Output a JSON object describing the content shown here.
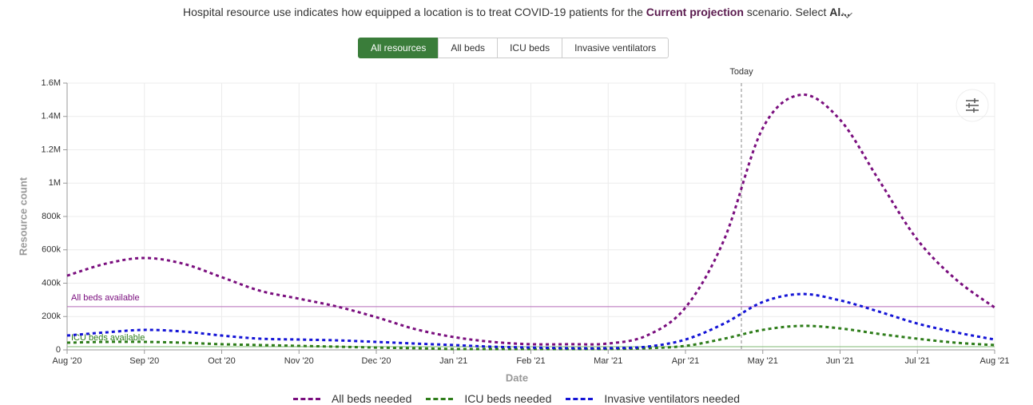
{
  "description": {
    "before": "Hospital resource use indicates how equipped a location is to treat COVID-19 patients for the",
    "highlight": "Current projection",
    "after": "scenario. Select",
    "truncated": "Al..."
  },
  "tabs": [
    "All resources",
    "All beds",
    "ICU beds",
    "Invasive ventilators"
  ],
  "chart_data": {
    "type": "line",
    "xlabel": "Date",
    "ylabel": "Resource count",
    "categories": [
      "Aug '20",
      null,
      "Sep '20",
      null,
      "Oct '20",
      null,
      "Nov '20",
      null,
      "Dec '20",
      null,
      "Jan '21",
      null,
      "Feb '21",
      null,
      "Mar '21",
      null,
      "Apr '21",
      null,
      "May '21",
      null,
      "Jun '21",
      null,
      "Jul '21",
      null,
      "Aug '21"
    ],
    "series": [
      {
        "name": "All beds needed",
        "color": "#7a0e7e",
        "values": [
          445000,
          517000,
          551000,
          517000,
          436000,
          354000,
          307000,
          259000,
          196000,
          125000,
          77000,
          48000,
          34000,
          34000,
          38000,
          86000,
          254000,
          661000,
          1330000,
          1530000,
          1380000,
          1020000,
          661000,
          422000,
          254000
        ]
      },
      {
        "name": "ICU beds needed",
        "color": "#2e7d1a",
        "values": [
          43000,
          48000,
          48000,
          43000,
          34000,
          29000,
          24000,
          19000,
          14000,
          10000,
          5000,
          5000,
          5000,
          5000,
          5000,
          10000,
          24000,
          67000,
          120000,
          144000,
          129000,
          96000,
          67000,
          43000,
          29000
        ]
      },
      {
        "name": "Invasive ventilators needed",
        "color": "#1414d6",
        "values": [
          86000,
          105000,
          120000,
          110000,
          86000,
          67000,
          62000,
          57000,
          48000,
          38000,
          29000,
          19000,
          14000,
          10000,
          10000,
          19000,
          62000,
          158000,
          287000,
          335000,
          297000,
          230000,
          158000,
          105000,
          62000
        ]
      }
    ],
    "reference_lines": [
      {
        "label": "All beds available",
        "value": 259000,
        "color": "#b46bb8"
      },
      {
        "label": "ICU beds available",
        "value": 19000,
        "color": "#7fb873"
      }
    ],
    "today_label": "Today",
    "ylim": [
      0,
      1600000
    ],
    "yticks": [
      0,
      {
        "value": 200000,
        "label": "200k"
      },
      {
        "value": 400000,
        "label": "400k"
      },
      {
        "value": 600000,
        "label": "600k"
      },
      {
        "value": 800000,
        "label": "800k"
      },
      {
        "value": 1000000,
        "label": "1M"
      },
      {
        "value": 1200000,
        "label": "1.2M"
      },
      {
        "value": 1400000,
        "label": "1.4M"
      },
      {
        "value": 1600000,
        "label": "1.6M"
      }
    ],
    "grid": true
  }
}
